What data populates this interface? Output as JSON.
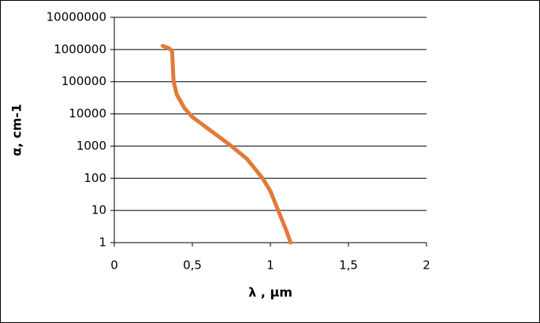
{
  "chart_data": {
    "type": "line",
    "x_label": "λ , µm",
    "y_label": "α, cm-1",
    "log_y": true,
    "grid": true,
    "series": [
      {
        "color": "#e07b39",
        "x": [
          0.31,
          0.35,
          0.37,
          0.38,
          0.4,
          0.45,
          0.5,
          0.6,
          0.75,
          0.85,
          0.95,
          1.0,
          1.05,
          1.1,
          1.13
        ],
        "values": [
          1300000,
          1100000,
          900000,
          100000,
          40000,
          15000,
          8000,
          3500,
          1000,
          400,
          100,
          40,
          10,
          2.5,
          1
        ]
      }
    ],
    "xlim": [
      0,
      2
    ],
    "xticks": [
      0,
      {
        "value": 0.5,
        "label": "0,5"
      },
      1,
      {
        "value": 1.5,
        "label": "1,5"
      },
      2
    ],
    "ylim": [
      1,
      10000000
    ],
    "yticks": [
      1,
      10,
      100,
      1000,
      10000,
      100000,
      1000000,
      10000000
    ]
  }
}
